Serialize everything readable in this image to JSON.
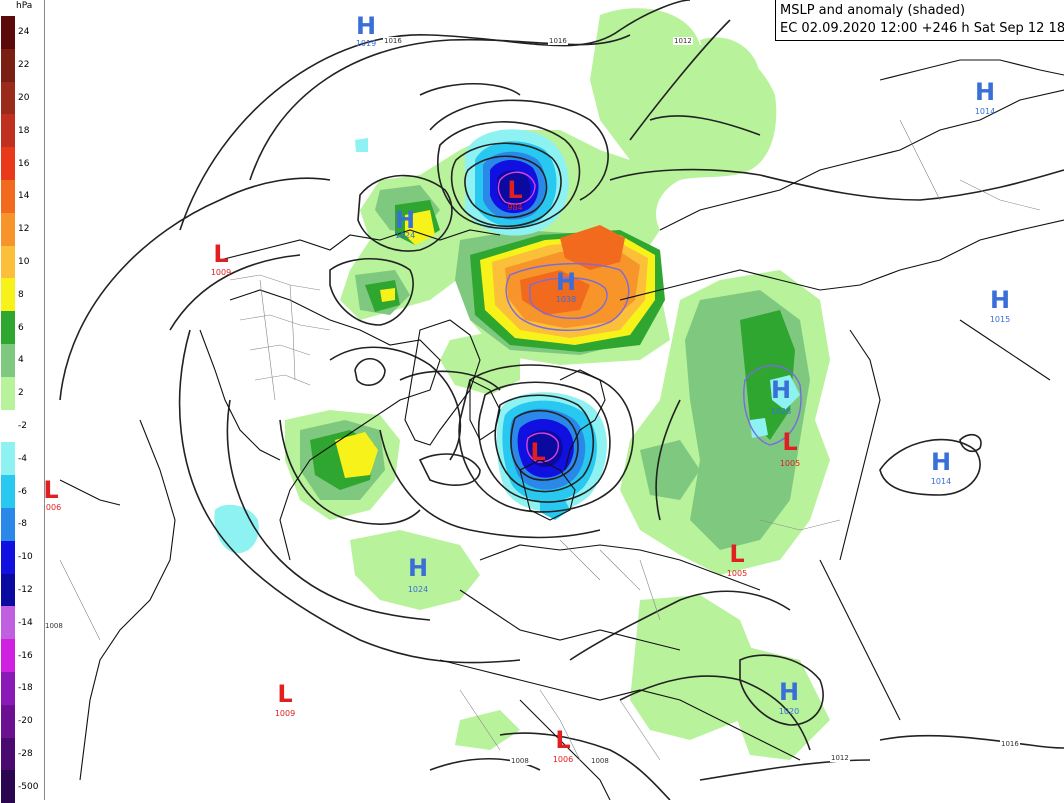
{
  "title": {
    "line1": "MSLP and anomaly (shaded)",
    "line2": "EC 02.09.2020 12:00  +246 h Sat Sep 12 18hrs"
  },
  "colorbar": {
    "unit": "hPa",
    "entries": [
      {
        "label": "24",
        "color": "#5a0a0a"
      },
      {
        "label": "22",
        "color": "#7a1f14"
      },
      {
        "label": "20",
        "color": "#9a2a1a"
      },
      {
        "label": "18",
        "color": "#c0301e"
      },
      {
        "label": "16",
        "color": "#e83a1a"
      },
      {
        "label": "14",
        "color": "#f26a1e"
      },
      {
        "label": "12",
        "color": "#f7952a"
      },
      {
        "label": "10",
        "color": "#fbbf3a"
      },
      {
        "label": "8",
        "color": "#f7f21a"
      },
      {
        "label": "6",
        "color": "#2fa62f"
      },
      {
        "label": "4",
        "color": "#7fc87f"
      },
      {
        "label": "2",
        "color": "#b8f29a"
      },
      {
        "label": "-2",
        "color": "#ffffff"
      },
      {
        "label": "-4",
        "color": "#8ff2f2"
      },
      {
        "label": "-6",
        "color": "#28c8f0"
      },
      {
        "label": "-8",
        "color": "#2a88e8"
      },
      {
        "label": "-10",
        "color": "#1010e0"
      },
      {
        "label": "-12",
        "color": "#0a0aa0"
      },
      {
        "label": "-14",
        "color": "#c060e0"
      },
      {
        "label": "-16",
        "color": "#d020e0"
      },
      {
        "label": "-18",
        "color": "#8a1ab8"
      },
      {
        "label": "-20",
        "color": "#6a1090"
      },
      {
        "label": "-28",
        "color": "#4a0a70"
      },
      {
        "label": "-500",
        "color": "#2a0650"
      }
    ]
  },
  "pressure_systems": [
    {
      "type": "H",
      "value": "1019"
    },
    {
      "type": "L",
      "value": "984"
    },
    {
      "type": "H",
      "value": "1024"
    },
    {
      "type": "L",
      "value": "1009"
    },
    {
      "type": "H",
      "value": "1038"
    },
    {
      "type": "L",
      "value": ""
    },
    {
      "type": "L",
      "value": "1006"
    },
    {
      "type": "H",
      "value": "1024"
    },
    {
      "type": "L",
      "value": "1009"
    },
    {
      "type": "L",
      "value": "1006"
    },
    {
      "type": "H",
      "value": "1014"
    },
    {
      "type": "H",
      "value": "1015"
    },
    {
      "type": "H",
      "value": "1028"
    },
    {
      "type": "L",
      "value": "1005"
    },
    {
      "type": "H",
      "value": "1014"
    },
    {
      "type": "L",
      "value": "1005"
    },
    {
      "type": "H",
      "value": "1020"
    }
  ],
  "isobar_labels": [
    "1016",
    "1016",
    "1012",
    "1008",
    "1008",
    "1008",
    "1012",
    "1016"
  ]
}
